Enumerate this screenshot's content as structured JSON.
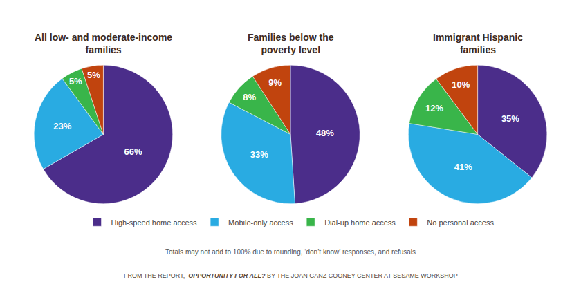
{
  "chart_data": [
    {
      "type": "pie",
      "title": "All low- and moderate-income\nfamilies",
      "categories": [
        "High-speed home access",
        "Mobile-only access",
        "Dial-up home access",
        "No personal access"
      ],
      "values": [
        66,
        23,
        5,
        5
      ],
      "value_labels": [
        "66%",
        "23%",
        "5%",
        "5%"
      ],
      "colors": [
        "#4B2D8A",
        "#29ABE2",
        "#39B54A",
        "#C1440E"
      ],
      "data_labels": true,
      "legend": "bottom"
    },
    {
      "type": "pie",
      "title": "Families below the\npoverty level",
      "categories": [
        "High-speed home access",
        "Mobile-only access",
        "Dial-up home access",
        "No personal access"
      ],
      "values": [
        48,
        33,
        8,
        9
      ],
      "value_labels": [
        "48%",
        "33%",
        "8%",
        "9%"
      ],
      "colors": [
        "#4B2D8A",
        "#29ABE2",
        "#39B54A",
        "#C1440E"
      ],
      "data_labels": true,
      "legend": "bottom"
    },
    {
      "type": "pie",
      "title": "Immigrant Hispanic\nfamilies",
      "categories": [
        "High-speed home access",
        "Mobile-only access",
        "Dial-up home access",
        "No personal access"
      ],
      "values": [
        35,
        41,
        12,
        10
      ],
      "value_labels": [
        "35%",
        "41%",
        "12%",
        "10%"
      ],
      "colors": [
        "#4B2D8A",
        "#29ABE2",
        "#39B54A",
        "#C1440E"
      ],
      "data_labels": true,
      "legend": "bottom"
    }
  ],
  "annotations": [
    "Totals may not add to 100% due to rounding, ‘don’t know’ responses, and refusals",
    "FROM THE REPORT,  ",
    "OPPORTUNITY FOR ALL?",
    " BY THE JOAN GANZ COONEY CENTER AT SESAME WORKSHOP"
  ]
}
